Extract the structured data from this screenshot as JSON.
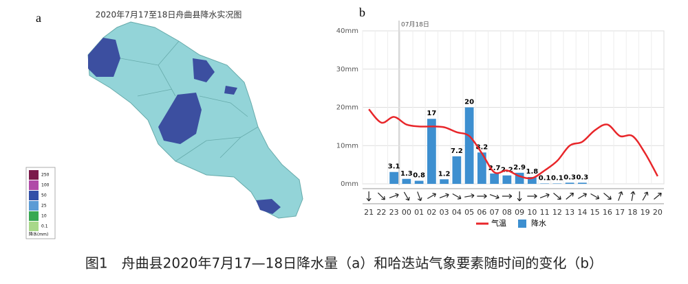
{
  "panel_a": {
    "label": "a",
    "title": "2020年7月17至18日舟曲县降水实况图",
    "legend": {
      "title": "降水(mm)",
      "levels": [
        {
          "label": "250",
          "color": "#7b1a4a"
        },
        {
          "label": "100",
          "color": "#b04aa8"
        },
        {
          "label": "50",
          "color": "#3350a8"
        },
        {
          "label": "25",
          "color": "#5b9bd5"
        },
        {
          "label": "10",
          "color": "#38a852"
        },
        {
          "label": "0.1",
          "color": "#a8d88a"
        }
      ]
    }
  },
  "chart_data": {
    "type": "bar",
    "label": "b",
    "annotation": "07月18日",
    "categories": [
      "21",
      "22",
      "23",
      "00",
      "01",
      "02",
      "03",
      "04",
      "05",
      "06",
      "07",
      "08",
      "09",
      "10",
      "11",
      "12",
      "13",
      "14",
      "15",
      "16",
      "17",
      "18",
      "19",
      "20"
    ],
    "series": [
      {
        "name": "气温",
        "type": "line",
        "color": "#e8262a",
        "values": [
          19.5,
          16,
          17.5,
          15.5,
          15,
          15,
          14.8,
          13.5,
          12.5,
          8,
          3,
          3.5,
          2,
          1.5,
          3.5,
          6,
          10,
          11,
          14,
          15.5,
          12.5,
          12.5,
          8,
          2
        ]
      },
      {
        "name": "降水",
        "type": "bar",
        "color": "#3d8fd0",
        "values": [
          null,
          null,
          3.1,
          1.3,
          0.8,
          17,
          1.2,
          7.2,
          20,
          8.2,
          2.7,
          2.2,
          2.9,
          1.8,
          0.1,
          0.1,
          0.3,
          0.3,
          null,
          null,
          null,
          null,
          null,
          null
        ]
      }
    ],
    "ylim": [
      0,
      40
    ],
    "yticks": [
      {
        "value": 0,
        "label": "0mm"
      },
      {
        "value": 10,
        "label": "10mm"
      },
      {
        "value": 20,
        "label": "20mm"
      },
      {
        "value": 30,
        "label": "30mm"
      },
      {
        "value": 40,
        "label": "40mm"
      }
    ],
    "grid": true
  },
  "caption": "图1　舟曲县2020年7月17—18日降水量（a）和哈迭站气象要素随时间的变化（b）"
}
